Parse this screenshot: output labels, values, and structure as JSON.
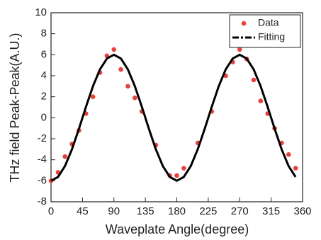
{
  "chart_data": {
    "type": "scatter",
    "x_label": "Waveplate Angle(degree)",
    "y_label": "THz field Peak-Peak(A.U.)",
    "xlim": [
      0,
      360
    ],
    "xticks": [
      0,
      45,
      90,
      135,
      180,
      225,
      270,
      315,
      360
    ],
    "ylim": [
      -8,
      10
    ],
    "yticks": [
      -8,
      -6,
      -4,
      -2,
      0,
      2,
      4,
      6,
      8,
      10
    ],
    "legend": "upper right",
    "series": [
      {
        "name": "Data",
        "color": "#e8413c",
        "style": "markers",
        "x": [
          0,
          10,
          20,
          30,
          40,
          50,
          60,
          70,
          80,
          90,
          100,
          110,
          120,
          130,
          150,
          170,
          180,
          190,
          210,
          230,
          250,
          260,
          270,
          280,
          290,
          300,
          310,
          320,
          330,
          340,
          350
        ],
        "values": [
          -6.0,
          -5.2,
          -3.7,
          -2.5,
          -1.2,
          0.4,
          2.0,
          4.3,
          5.9,
          6.5,
          4.6,
          3.0,
          1.9,
          0.6,
          -2.6,
          -5.5,
          -5.5,
          -4.8,
          -2.4,
          0.6,
          4.0,
          5.3,
          6.5,
          5.6,
          3.6,
          1.6,
          0.4,
          -1.0,
          -2.4,
          -3.5,
          -4.8
        ]
      },
      {
        "name": "Fitting",
        "color": "#000000",
        "style": "line",
        "x": [
          0,
          10,
          20,
          30,
          40,
          50,
          60,
          70,
          80,
          90,
          100,
          110,
          120,
          130,
          140,
          150,
          160,
          170,
          180,
          190,
          200,
          210,
          220,
          230,
          240,
          250,
          260,
          270,
          280,
          290,
          300,
          310,
          320,
          330,
          340,
          350
        ],
        "values": [
          -6,
          -5.64,
          -4.6,
          -3,
          -1.04,
          1.04,
          3,
          4.6,
          5.64,
          6,
          5.64,
          4.6,
          3,
          1.04,
          -1.04,
          -3,
          -4.6,
          -5.64,
          -6,
          -5.64,
          -4.6,
          -3,
          -1.04,
          1.04,
          3,
          4.6,
          5.64,
          6,
          5.64,
          4.6,
          3,
          1.04,
          -1.04,
          -3,
          -4.6,
          -5.64
        ]
      }
    ]
  }
}
